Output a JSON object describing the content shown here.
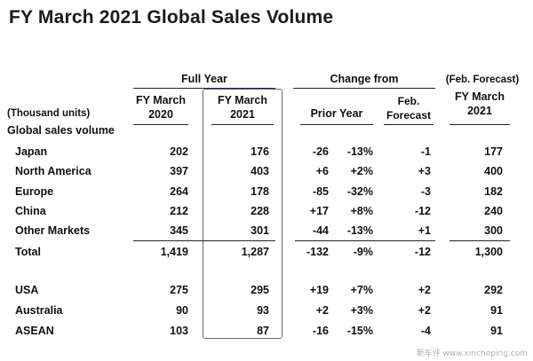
{
  "title": "FY March 2021 Global Sales Volume",
  "headers": {
    "full_year": "Full Year",
    "change_from": "Change from",
    "feb_forecast_paren": "(Feb. Forecast)",
    "fy2020": [
      "FY March",
      "2020"
    ],
    "fy2021": [
      "FY March",
      "2021"
    ],
    "prior_year": "Prior Year",
    "feb_forecast": [
      "Feb.",
      "Forecast"
    ],
    "fy2021_forecast": [
      "FY March",
      "2021"
    ],
    "units": "(Thousand units)",
    "section": "Global sales volume"
  },
  "rows": [
    {
      "label": "Japan",
      "fy2020": "202",
      "fy2021": "176",
      "chg": "-26",
      "pct": "-13%",
      "vs_feb": "-1",
      "feb_forecast": "177"
    },
    {
      "label": "North America",
      "fy2020": "397",
      "fy2021": "403",
      "chg": "+6",
      "pct": "+2%",
      "vs_feb": "+3",
      "feb_forecast": "400"
    },
    {
      "label": "Europe",
      "fy2020": "264",
      "fy2021": "178",
      "chg": "-85",
      "pct": "-32%",
      "vs_feb": "-3",
      "feb_forecast": "182"
    },
    {
      "label": "China",
      "fy2020": "212",
      "fy2021": "228",
      "chg": "+17",
      "pct": "+8%",
      "vs_feb": "-12",
      "feb_forecast": "240"
    },
    {
      "label": "Other Markets",
      "fy2020": "345",
      "fy2021": "301",
      "chg": "-44",
      "pct": "-13%",
      "vs_feb": "+1",
      "feb_forecast": "300"
    },
    {
      "label": "Total",
      "fy2020": "1,419",
      "fy2021": "1,287",
      "chg": "-132",
      "pct": "-9%",
      "vs_feb": "-12",
      "feb_forecast": "1,300"
    },
    {
      "label": "USA",
      "fy2020": "275",
      "fy2021": "295",
      "chg": "+19",
      "pct": "+7%",
      "vs_feb": "+2",
      "feb_forecast": "292"
    },
    {
      "label": "Australia",
      "fy2020": "90",
      "fy2021": "93",
      "chg": "+2",
      "pct": "+3%",
      "vs_feb": "+2",
      "feb_forecast": "91"
    },
    {
      "label": "ASEAN",
      "fy2020": "103",
      "fy2021": "87",
      "chg": "-16",
      "pct": "-15%",
      "vs_feb": "-4",
      "feb_forecast": "91"
    }
  ],
  "watermark": "新车评 www.xincheping.com",
  "colors": {
    "frame": "#5b6a8c",
    "text": "#111111"
  }
}
